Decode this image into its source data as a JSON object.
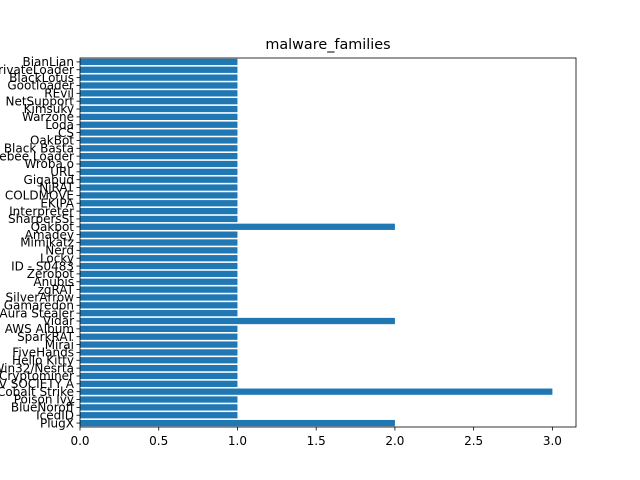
{
  "chart_data": {
    "type": "bar",
    "orientation": "horizontal",
    "title": "malware_families",
    "xlabel": "",
    "ylabel": "",
    "xlim": [
      0,
      3.15
    ],
    "xticks": [
      "0.0",
      "0.5",
      "1.0",
      "1.5",
      "2.0",
      "2.5",
      "3.0"
    ],
    "xtick_values": [
      0,
      0.5,
      1,
      1.5,
      2,
      2.5,
      3
    ],
    "grid": false,
    "bar_color": "#1f77b4",
    "categories": [
      "PlugX",
      "IcedID",
      "BlueNoroff",
      "Poison Ivy",
      "Cobalt Strike",
      "ALPHV SOCIETY A",
      "Cryptominer",
      "Win32/Nesrta",
      "Hello Kitty",
      "FiveHands",
      "Mirai",
      "SparkRAT",
      "AWS Album",
      "Vidar",
      "Aura Stealer",
      "Gamaredon",
      "SilverArrow",
      "zgRAT",
      "Anubis",
      "Zerobot",
      "ID - S0483",
      "Locky",
      "Nerd",
      "Mimikatz",
      "Amadey",
      "Qakbot",
      "SharpersSt",
      "Interpreter",
      "EKIPA",
      "COLDMOVE",
      "NjRAT",
      "Gigabud",
      "URL",
      "Wroba.o",
      "Bumblebee Loader",
      "Black Basta",
      "OakBot",
      "CS",
      "Loda",
      "Warzone",
      "Kimsuky",
      "NetSupport",
      "REvil",
      "Gootloader",
      "BlackLotus",
      "PrivateLoader",
      "BianLian"
    ],
    "values": [
      2,
      1,
      1,
      1,
      3,
      1,
      1,
      1,
      1,
      1,
      1,
      1,
      1,
      2,
      1,
      1,
      1,
      1,
      1,
      1,
      1,
      1,
      1,
      1,
      1,
      2,
      1,
      1,
      1,
      1,
      1,
      1,
      1,
      1,
      1,
      1,
      1,
      1,
      1,
      1,
      1,
      1,
      1,
      1,
      1,
      1,
      1
    ]
  }
}
